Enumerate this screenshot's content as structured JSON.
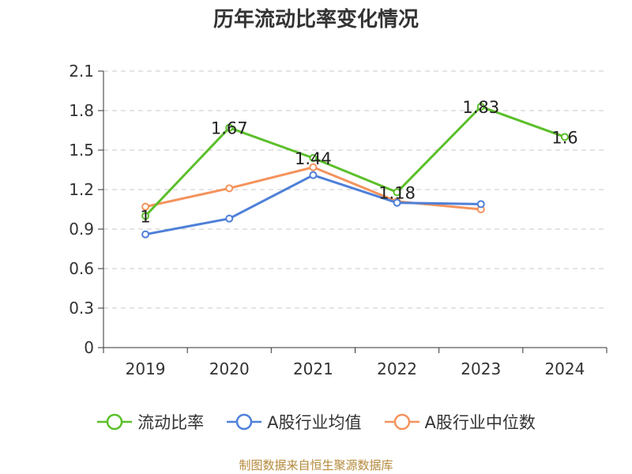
{
  "chart_data": {
    "type": "line",
    "title": "历年流动比率变化情况",
    "categories": [
      "2019",
      "2020",
      "2021",
      "2022",
      "2023",
      "2024"
    ],
    "y_ticks": [
      "0",
      "0.3",
      "0.6",
      "0.9",
      "1.2",
      "1.5",
      "1.8",
      "2.1"
    ],
    "ylim": [
      0,
      2.1
    ],
    "grid": true,
    "legend_position": "bottom",
    "series": [
      {
        "name": "流动比率",
        "color": "#5bbf2a",
        "values": [
          1.0,
          1.67,
          1.44,
          1.18,
          1.83,
          1.6
        ],
        "labels": [
          "1",
          "1.67",
          "1.44",
          "1.18",
          "1.83",
          "1.6"
        ]
      },
      {
        "name": "A股行业均值",
        "color": "#4f80d8",
        "values": [
          0.86,
          0.98,
          1.31,
          1.1,
          1.09,
          null
        ]
      },
      {
        "name": "A股行业中位数",
        "color": "#f4935c",
        "values": [
          1.07,
          1.21,
          1.37,
          1.11,
          1.05,
          null
        ]
      }
    ]
  },
  "source_note": "制图数据来自恒生聚源数据库"
}
